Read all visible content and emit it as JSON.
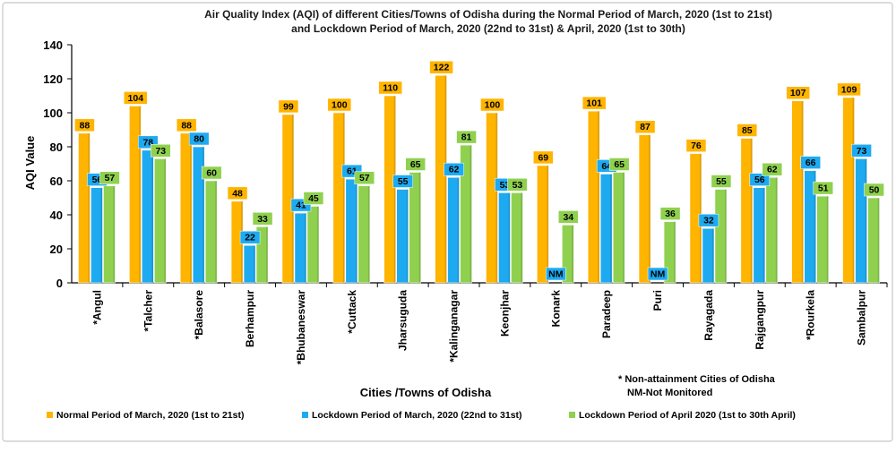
{
  "chart_data": {
    "type": "bar",
    "title_line1": "Air Quality Index (AQI) of different Cities/Towns of Odisha during  the Normal Period of March, 2020 (1st to 21st)",
    "title_line2": "and Lockdown Period of March, 2020 (22nd to 31st) & April, 2020 (1st to 30th)",
    "xlabel": "Cities /Towns of Odisha",
    "ylabel": "AQI Value",
    "ylim": [
      0,
      140
    ],
    "yticks": [
      "0",
      "20",
      "40",
      "60",
      "80",
      "100",
      "120",
      "140"
    ],
    "categories": [
      "*Angul",
      "*Talcher",
      "*Balasore",
      "Berhampur",
      "*Bhubaneswar",
      "*Cuttack",
      "Jharsuguda",
      "*Kalinganagar",
      "Keonjhar",
      "Konark",
      "Paradeep",
      "Puri",
      "Rayagada",
      "Rajgangpur",
      "*Rourkela",
      "Sambalpur"
    ],
    "series": [
      {
        "name": "Normal Period of March, 2020 (1st to 21st)",
        "color": "#FFB400",
        "values": [
          88,
          104,
          88,
          48,
          99,
          100,
          110,
          122,
          100,
          69,
          101,
          87,
          76,
          85,
          107,
          109
        ],
        "labels": [
          "88",
          "104",
          "88",
          "48",
          "99",
          "100",
          "110",
          "122",
          "100",
          "69",
          "101",
          "87",
          "76",
          "85",
          "107",
          "109"
        ]
      },
      {
        "name": "Lockdown Period of  March, 2020 (22nd  to 31st)",
        "color": "#1EAAF1",
        "values": [
          56,
          78,
          80,
          22,
          41,
          61,
          55,
          62,
          53,
          null,
          64,
          null,
          32,
          56,
          66,
          73
        ],
        "labels": [
          "56",
          "78",
          "80",
          "22",
          "41",
          "61",
          "55",
          "62",
          "53",
          "NM",
          "64",
          "NM",
          "32",
          "56",
          "66",
          "73"
        ]
      },
      {
        "name": "Lockdown Period of April 2020 (1st to 30th April)",
        "color": "#8FD14F",
        "values": [
          57,
          73,
          60,
          33,
          45,
          57,
          65,
          81,
          53,
          34,
          65,
          36,
          55,
          62,
          51,
          50
        ],
        "labels": [
          "57",
          "73",
          "60",
          "33",
          "45",
          "57",
          "65",
          "81",
          "53",
          "34",
          "65",
          "36",
          "55",
          "62",
          "51",
          "50"
        ]
      }
    ],
    "notes": [
      "*  Non-attainment Cities of Odisha",
      "NM-Not Monitored"
    ],
    "legend_position": "bottom"
  }
}
